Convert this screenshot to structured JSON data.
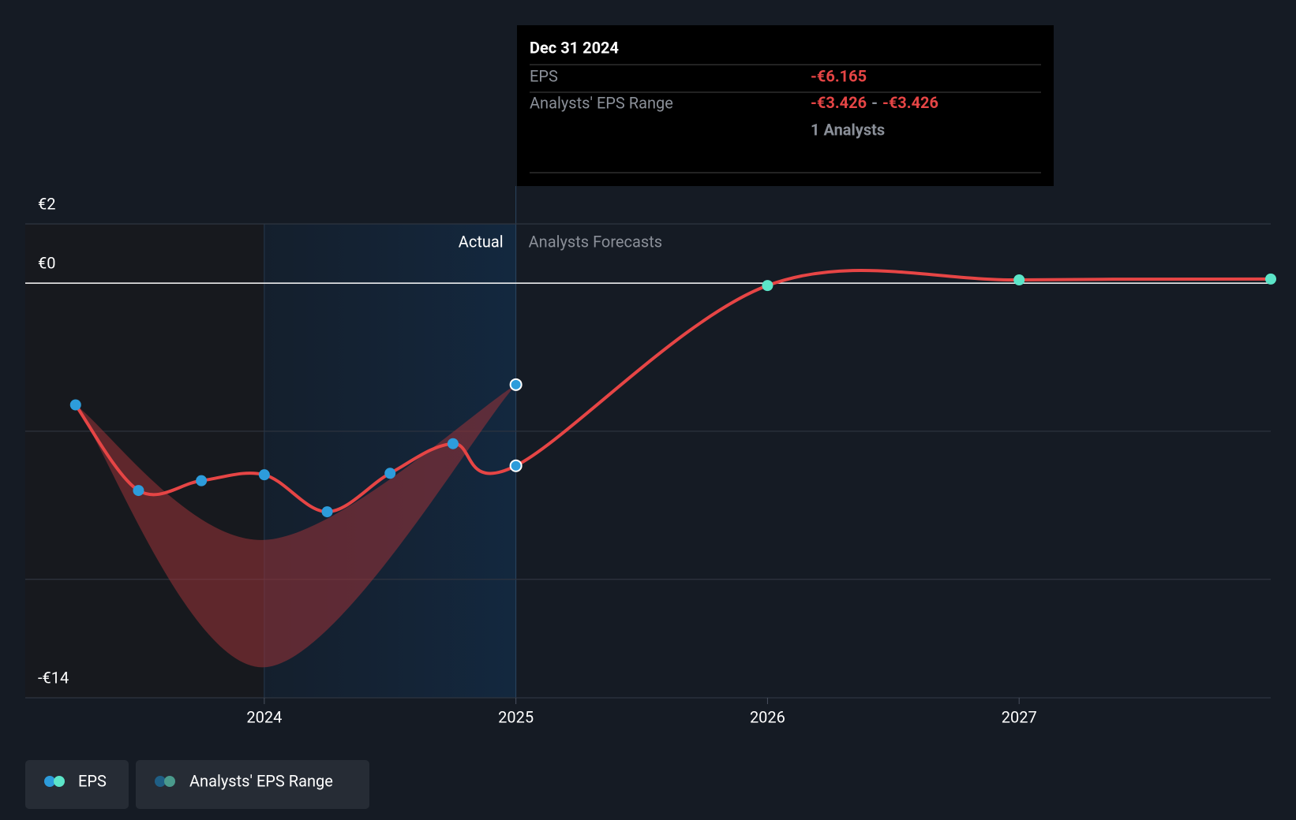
{
  "chart_data": {
    "type": "line",
    "xlim": [
      2023.05,
      2028.0
    ],
    "xticks": [
      2024,
      2025,
      2026,
      2027
    ],
    "ylim": [
      -14,
      2
    ],
    "yticks": [
      {
        "value": 2,
        "label": "€2"
      },
      {
        "value": 0,
        "label": "€0"
      },
      {
        "value": -5,
        "label": null
      },
      {
        "value": -10,
        "label": null
      },
      {
        "value": -14,
        "label": "-€14"
      }
    ],
    "grid": true,
    "forecast_start": 2025,
    "actual_label": "Actual",
    "forecast_label": "Analysts Forecasts",
    "series": [
      {
        "name": "EPS",
        "color": "#e64545",
        "marker_color": "#2d9cdb",
        "forecast_marker_color": "#5ce5c8",
        "x": [
          2023.25,
          2023.5,
          2023.75,
          2024,
          2024.25,
          2024.5,
          2024.75,
          2025,
          2026,
          2027,
          2028
        ],
        "values": [
          -4.11,
          -7.0,
          -6.67,
          -6.47,
          -7.72,
          -6.42,
          -5.42,
          -6.165,
          -0.08,
          0.11,
          0.14
        ]
      },
      {
        "name": "Analysts' EPS Range",
        "color": "#9b3338",
        "marker_color": "#2d9cdb",
        "x": [
          2023.25,
          2024,
          2025
        ],
        "low": [
          -4.11,
          -12.97,
          -3.426
        ],
        "high": [
          -4.11,
          -8.67,
          -3.426
        ]
      }
    ],
    "tooltip": {
      "date": "Dec 31 2024",
      "eps_label": "EPS",
      "eps_value": "-€6.165",
      "range_label": "Analysts' EPS Range",
      "range_low": "-€3.426",
      "range_sep": "-",
      "range_high": "-€3.426",
      "analysts": "1 Analysts"
    }
  }
}
